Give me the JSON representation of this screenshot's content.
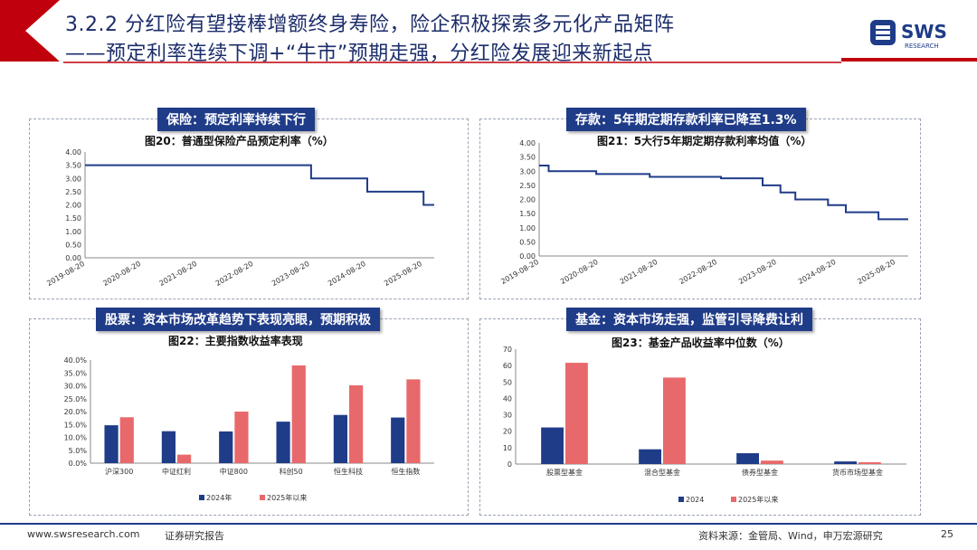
{
  "header": {
    "title_line1": "3.2.2 分红险有望接棒增额终身寿险，险企积极探索多元化产品矩阵",
    "title_line2": "——预定利率连续下调+“牛市”预期走强，分红险发展迎来新起点",
    "brand_colors": {
      "navy": "#1f3c88",
      "red": "#c0000c"
    }
  },
  "logo": {
    "text": "SWS",
    "subtext": "RESEARCH"
  },
  "panels": {
    "p1": {
      "badge": "保险：预定利率持续下行",
      "fig_title": "图20：普通型保险产品预定利率（%）"
    },
    "p2": {
      "badge": "存款：5年期定期存款利率已降至1.3%",
      "fig_title": "图21：5大行5年期定期存款利率均值（%）"
    },
    "p3": {
      "badge": "股票：资本市场改革趋势下表现亮眼，预期积极",
      "fig_title": "图22：主要指数收益率表现"
    },
    "p4": {
      "badge": "基金：资本市场走强，监管引导降费让利",
      "fig_title": "图23：基金产品收益率中位数（%）"
    }
  },
  "footer": {
    "website": "www.swsresearch.com",
    "doc_type": "证券研究报告",
    "source": "资料来源：金管局、Wind，申万宏源研究",
    "page_number": "25"
  },
  "chart_data": [
    {
      "id": "fig20",
      "type": "line",
      "step": true,
      "title": "图20：普通型保险产品预定利率（%）",
      "x_ticks": [
        "2019-08-20",
        "2020-08-20",
        "2021-08-20",
        "2022-08-20",
        "2023-08-20",
        "2024-08-20",
        "2025-08-20"
      ],
      "x_range": [
        2019.64,
        2025.85
      ],
      "y_range": [
        0.0,
        4.0
      ],
      "y_ticks": [
        "0.00",
        "0.50",
        "1.00",
        "1.50",
        "2.00",
        "2.50",
        "3.00",
        "3.50",
        "4.00"
      ],
      "y_tick_values": [
        0,
        0.5,
        1,
        1.5,
        2,
        2.5,
        3,
        3.5,
        4
      ],
      "points": [
        [
          2019.64,
          3.5
        ],
        [
          2023.66,
          3.5
        ],
        [
          2023.66,
          3.0
        ],
        [
          2024.66,
          3.0
        ],
        [
          2024.66,
          2.5
        ],
        [
          2025.66,
          2.5
        ],
        [
          2025.66,
          2.0
        ],
        [
          2025.85,
          2.0
        ]
      ],
      "color": "#1f3c88"
    },
    {
      "id": "fig21",
      "type": "line",
      "step": true,
      "title": "图21：5大行5年期定期存款利率均值（%）",
      "x_ticks": [
        "2019-08-20",
        "2020-08-20",
        "2021-08-20",
        "2022-08-20",
        "2023-08-20",
        "2024-08-20",
        "2025-08-20"
      ],
      "x_range": [
        2019.64,
        2025.85
      ],
      "y_range": [
        0.0,
        4.0
      ],
      "y_ticks": [
        "0.00",
        "0.50",
        "1.00",
        "1.50",
        "2.00",
        "2.50",
        "3.00",
        "3.50",
        "4.00"
      ],
      "y_tick_values": [
        0,
        0.5,
        1,
        1.5,
        2,
        2.5,
        3,
        3.5,
        4
      ],
      "points": [
        [
          2019.64,
          3.2
        ],
        [
          2019.8,
          3.2
        ],
        [
          2019.8,
          3.0
        ],
        [
          2020.6,
          3.0
        ],
        [
          2020.6,
          2.9
        ],
        [
          2021.5,
          2.9
        ],
        [
          2021.5,
          2.8
        ],
        [
          2022.7,
          2.8
        ],
        [
          2022.7,
          2.75
        ],
        [
          2023.4,
          2.75
        ],
        [
          2023.4,
          2.5
        ],
        [
          2023.7,
          2.5
        ],
        [
          2023.7,
          2.25
        ],
        [
          2023.95,
          2.25
        ],
        [
          2023.95,
          2.0
        ],
        [
          2024.5,
          2.0
        ],
        [
          2024.5,
          1.8
        ],
        [
          2024.8,
          1.8
        ],
        [
          2024.8,
          1.55
        ],
        [
          2025.35,
          1.55
        ],
        [
          2025.35,
          1.3
        ],
        [
          2025.85,
          1.3
        ]
      ],
      "color": "#1f3c88"
    },
    {
      "id": "fig22",
      "type": "bar",
      "title": "图22：主要指数收益率表现",
      "categories": [
        "沪深300",
        "中证红利",
        "中证800",
        "科创50",
        "恒生科技",
        "恒生指数"
      ],
      "y_range": [
        0,
        40
      ],
      "y_ticks": [
        "0.0%",
        "5.0%",
        "10.0%",
        "15.0%",
        "20.0%",
        "25.0%",
        "30.0%",
        "35.0%",
        "40.0%"
      ],
      "y_tick_values": [
        0,
        5,
        10,
        15,
        20,
        25,
        30,
        35,
        40
      ],
      "series": [
        {
          "name": "2024年",
          "color": "#1f3c88",
          "values": [
            14.7,
            12.4,
            12.3,
            16.1,
            18.7,
            17.7
          ]
        },
        {
          "name": "2025年以来",
          "color": "#e8696b",
          "values": [
            17.8,
            3.3,
            20.0,
            37.9,
            30.2,
            32.5
          ]
        }
      ]
    },
    {
      "id": "fig23",
      "type": "bar",
      "title": "图23：基金产品收益率中位数（%）",
      "categories": [
        "股票型基金",
        "混合型基金",
        "债券型基金",
        "货币市场型基金"
      ],
      "y_range": [
        0,
        70
      ],
      "y_ticks": [
        "0",
        "10",
        "20",
        "30",
        "40",
        "50",
        "60",
        "70"
      ],
      "y_tick_values": [
        0,
        10,
        20,
        30,
        40,
        50,
        60,
        70
      ],
      "series": [
        {
          "name": "2024",
          "color": "#1f3c88",
          "values": [
            22.3,
            9.0,
            6.6,
            1.6
          ]
        },
        {
          "name": "2025年以来",
          "color": "#e8696b",
          "values": [
            61.7,
            52.7,
            2.1,
            1.1
          ]
        }
      ]
    }
  ]
}
